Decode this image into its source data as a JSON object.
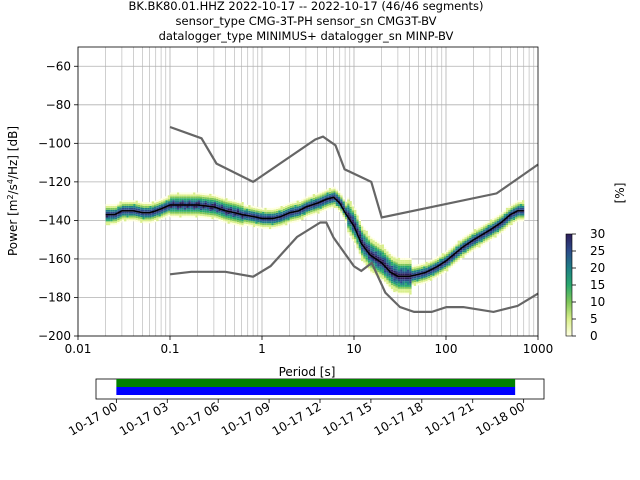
{
  "chart_data": [
    {
      "type": "heatmap",
      "title_lines": [
        "BK.BK80.01.HHZ   2022-10-17 -- 2022-10-17  (46/46 segments)",
        "sensor_type CMG-3T-PH sensor_sn CMG3T-BV",
        "datalogger_type MINIMUS+ datalogger_sn MINP-BV"
      ],
      "xlabel": "Period [s]",
      "ylabel_parts": [
        "Power [m",
        "2",
        "/s",
        "4",
        "/Hz] [dB]"
      ],
      "x_scale": "log",
      "xlim": [
        0.01,
        1000
      ],
      "ylim": [
        -200,
        -50
      ],
      "x_ticks": [
        {
          "value": 0.01,
          "label": "0.01"
        },
        {
          "value": 0.1,
          "label": "0.1"
        },
        {
          "value": 1,
          "label": "1"
        },
        {
          "value": 10,
          "label": "10"
        },
        {
          "value": 100,
          "label": "100"
        },
        {
          "value": 1000,
          "label": "1000"
        }
      ],
      "y_ticks": [
        {
          "value": -60,
          "label": "−60"
        },
        {
          "value": -80,
          "label": "−80"
        },
        {
          "value": -100,
          "label": "−100"
        },
        {
          "value": -120,
          "label": "−120"
        },
        {
          "value": -140,
          "label": "−140"
        },
        {
          "value": -160,
          "label": "−160"
        },
        {
          "value": -180,
          "label": "−180"
        },
        {
          "value": -200,
          "label": "−200"
        }
      ],
      "grid": true,
      "colorbar": {
        "label": "[%]",
        "range": [
          0,
          30
        ],
        "ticks": [
          {
            "value": 0,
            "label": "0"
          },
          {
            "value": 5,
            "label": "5"
          },
          {
            "value": 10,
            "label": "10"
          },
          {
            "value": 15,
            "label": "15"
          },
          {
            "value": 20,
            "label": "20"
          },
          {
            "value": 25,
            "label": "25"
          },
          {
            "value": 30,
            "label": "30"
          }
        ],
        "colors": [
          "#ffffe0",
          "#d9ef8b",
          "#7fc65a",
          "#2aa86e",
          "#1f7f86",
          "#2c4c8a",
          "#2d1e5a"
        ]
      },
      "noise_model_high": [
        [
          0.1,
          -91.5
        ],
        [
          0.22,
          -97.4
        ],
        [
          0.32,
          -110.5
        ],
        [
          0.8,
          -120.0
        ],
        [
          3.8,
          -98.0
        ],
        [
          4.6,
          -96.5
        ],
        [
          6.3,
          -101.0
        ],
        [
          7.9,
          -113.5
        ],
        [
          15.4,
          -120.0
        ],
        [
          20,
          -138.5
        ],
        [
          354.8,
          -126.0
        ],
        [
          1000,
          -111.0
        ]
      ],
      "noise_model_low": [
        [
          0.1,
          -168.0
        ],
        [
          0.17,
          -166.7
        ],
        [
          0.4,
          -166.7
        ],
        [
          0.8,
          -169.2
        ],
        [
          1.24,
          -163.7
        ],
        [
          2.4,
          -148.6
        ],
        [
          4.3,
          -141.1
        ],
        [
          5.0,
          -141.1
        ],
        [
          6.0,
          -149.0
        ],
        [
          10.0,
          -163.8
        ],
        [
          12.0,
          -166.2
        ],
        [
          15.6,
          -162.1
        ],
        [
          21.9,
          -177.5
        ],
        [
          31.6,
          -185.0
        ],
        [
          45.0,
          -187.5
        ],
        [
          70.0,
          -187.5
        ],
        [
          101.0,
          -185.0
        ],
        [
          154.0,
          -185.0
        ],
        [
          328.0,
          -187.5
        ],
        [
          600.0,
          -184.4
        ],
        [
          1000,
          -178.0
        ]
      ],
      "mode_curve": [
        [
          0.02,
          -137
        ],
        [
          0.025,
          -137
        ],
        [
          0.03,
          -135
        ],
        [
          0.04,
          -135
        ],
        [
          0.05,
          -136
        ],
        [
          0.06,
          -136
        ],
        [
          0.07,
          -135
        ],
        [
          0.08,
          -134
        ],
        [
          0.1,
          -132
        ],
        [
          0.15,
          -132
        ],
        [
          0.2,
          -132
        ],
        [
          0.3,
          -133
        ],
        [
          0.4,
          -135
        ],
        [
          0.5,
          -136
        ],
        [
          0.6,
          -137
        ],
        [
          0.8,
          -138
        ],
        [
          1.0,
          -139
        ],
        [
          1.3,
          -139
        ],
        [
          1.6,
          -138
        ],
        [
          2.0,
          -136
        ],
        [
          2.5,
          -135
        ],
        [
          3.0,
          -133
        ],
        [
          4.0,
          -131
        ],
        [
          5.0,
          -129
        ],
        [
          6.0,
          -128
        ],
        [
          7.0,
          -131
        ],
        [
          8.0,
          -136
        ],
        [
          10.0,
          -143
        ],
        [
          12.0,
          -152
        ],
        [
          15.0,
          -158
        ],
        [
          20.0,
          -162
        ],
        [
          25.0,
          -167
        ],
        [
          30.0,
          -169
        ],
        [
          40.0,
          -169
        ],
        [
          50.0,
          -168
        ],
        [
          60.0,
          -167
        ],
        [
          80.0,
          -164
        ],
        [
          100.0,
          -161
        ],
        [
          150.0,
          -154
        ],
        [
          200.0,
          -150
        ],
        [
          300.0,
          -145
        ],
        [
          400.0,
          -141
        ],
        [
          500.0,
          -137
        ],
        [
          600.0,
          -135
        ],
        [
          700.0,
          -135
        ]
      ]
    },
    {
      "type": "timeline",
      "x_ticks": [
        "10-17 00",
        "10-17 03",
        "10-17 06",
        "10-17 09",
        "10-17 12",
        "10-17 15",
        "10-17 18",
        "10-17 21",
        "10-18 00"
      ],
      "x_range_hours": [
        -1.2,
        25.2
      ],
      "bars": [
        {
          "color": "#008000",
          "start_hour": 0,
          "end_hour": 23.5
        },
        {
          "color": "#0000ff",
          "start_hour": 0,
          "end_hour": 23.5
        }
      ]
    }
  ]
}
